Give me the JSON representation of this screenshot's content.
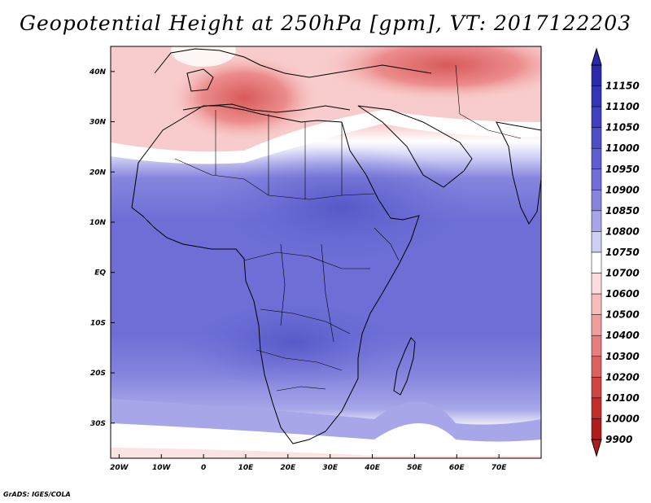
{
  "title": "Geopotential Height at 250hPa [gpm], VT: 2017122203",
  "credit": "GrADS: IGES/COLA",
  "map": {
    "lon_range": [
      -22,
      80
    ],
    "lat_range": [
      -37,
      45
    ],
    "lon_ticks": [
      {
        "value": -20,
        "label": "20W"
      },
      {
        "value": -10,
        "label": "10W"
      },
      {
        "value": 0,
        "label": "0"
      },
      {
        "value": 10,
        "label": "10E"
      },
      {
        "value": 20,
        "label": "20E"
      },
      {
        "value": 30,
        "label": "30E"
      },
      {
        "value": 40,
        "label": "40E"
      },
      {
        "value": 50,
        "label": "50E"
      },
      {
        "value": 60,
        "label": "60E"
      },
      {
        "value": 70,
        "label": "70E"
      }
    ],
    "lat_ticks": [
      {
        "value": 40,
        "label": "40N"
      },
      {
        "value": 30,
        "label": "30N"
      },
      {
        "value": 20,
        "label": "20N"
      },
      {
        "value": 10,
        "label": "10N"
      },
      {
        "value": 0,
        "label": "EQ"
      },
      {
        "value": -10,
        "label": "10S"
      },
      {
        "value": -20,
        "label": "20S"
      },
      {
        "value": -30,
        "label": "30S"
      }
    ]
  },
  "colorbar": {
    "labels": [
      "11150",
      "11100",
      "11050",
      "11000",
      "10950",
      "10900",
      "10850",
      "10800",
      "10750",
      "10700",
      "10600",
      "10500",
      "10400",
      "10300",
      "10200",
      "10100",
      "10000",
      "9900"
    ],
    "colors": [
      "#2a2aa8",
      "#3434b4",
      "#3f3fbf",
      "#4e4ec8",
      "#5e5ed0",
      "#6e6ed6",
      "#8585de",
      "#a6a6e8",
      "#cfcff4",
      "#ffffff",
      "#fcdcdc",
      "#f7bcbc",
      "#f09d9d",
      "#e67e7e",
      "#db6060",
      "#d04444",
      "#c42c2c",
      "#b01c1c"
    ]
  }
}
